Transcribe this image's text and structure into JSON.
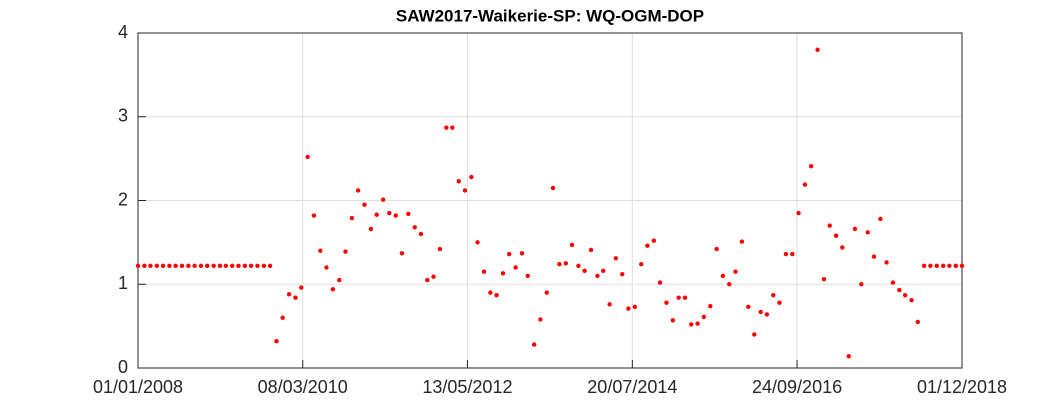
{
  "chart_data": {
    "type": "scatter",
    "title": "SAW2017-Waikerie-SP: WQ-OGM-DOP",
    "x": [
      "01/01/2008",
      "01/02/2008",
      "01/03/2008",
      "01/04/2008",
      "01/05/2008",
      "01/06/2008",
      "01/07/2008",
      "01/08/2008",
      "01/09/2008",
      "01/10/2008",
      "01/11/2008",
      "01/12/2008",
      "01/01/2009",
      "01/02/2009",
      "01/03/2009",
      "01/04/2009",
      "01/05/2009",
      "01/06/2009",
      "01/07/2009",
      "01/08/2009",
      "01/09/2009",
      "01/10/2009",
      "01/11/2009",
      "01/12/2009",
      "01/01/2010",
      "01/02/2010",
      "01/03/2010",
      "01/04/2010",
      "01/05/2010",
      "01/06/2010",
      "01/07/2010",
      "01/08/2010",
      "01/09/2010",
      "01/10/2010",
      "01/11/2010",
      "01/12/2010",
      "01/01/2011",
      "01/02/2011",
      "01/03/2011",
      "01/04/2011",
      "01/05/2011",
      "01/06/2011",
      "01/07/2011",
      "01/08/2011",
      "01/09/2011",
      "01/10/2011",
      "01/11/2011",
      "01/12/2011",
      "01/01/2012",
      "01/02/2012",
      "01/03/2012",
      "01/04/2012",
      "01/05/2012",
      "01/06/2012",
      "01/07/2012",
      "01/08/2012",
      "01/09/2012",
      "01/10/2012",
      "01/11/2012",
      "01/12/2012",
      "01/01/2013",
      "01/02/2013",
      "01/03/2013",
      "01/04/2013",
      "01/05/2013",
      "01/06/2013",
      "01/07/2013",
      "01/08/2013",
      "01/09/2013",
      "01/10/2013",
      "01/11/2013",
      "01/12/2013",
      "01/01/2014",
      "01/02/2014",
      "01/03/2014",
      "01/04/2014",
      "01/05/2014",
      "01/06/2014",
      "01/07/2014",
      "01/08/2014",
      "01/09/2014",
      "01/10/2014",
      "01/11/2014",
      "01/12/2014",
      "01/01/2015",
      "01/02/2015",
      "01/03/2015",
      "01/04/2015",
      "01/05/2015",
      "01/06/2015",
      "01/07/2015",
      "01/08/2015",
      "01/09/2015",
      "01/10/2015",
      "01/11/2015",
      "01/12/2015",
      "01/01/2016",
      "01/02/2016",
      "01/03/2016",
      "01/04/2016",
      "01/05/2016",
      "01/06/2016",
      "01/07/2016",
      "01/08/2016",
      "01/09/2016",
      "01/10/2016",
      "01/11/2016",
      "01/12/2016",
      "01/01/2017",
      "01/02/2017",
      "01/03/2017",
      "01/04/2017",
      "01/05/2017",
      "01/06/2017",
      "01/07/2017",
      "01/08/2017",
      "01/09/2017",
      "01/10/2017",
      "01/11/2017",
      "01/12/2017",
      "01/01/2018",
      "01/02/2018",
      "01/03/2018",
      "01/04/2018",
      "01/05/2018",
      "01/06/2018",
      "01/07/2018",
      "01/08/2018",
      "01/09/2018",
      "01/10/2018",
      "01/11/2018",
      "01/12/2018"
    ],
    "values": [
      1.22,
      1.22,
      1.22,
      1.22,
      1.22,
      1.22,
      1.22,
      1.22,
      1.22,
      1.22,
      1.22,
      1.22,
      1.22,
      1.22,
      1.22,
      1.22,
      1.22,
      1.22,
      1.22,
      1.22,
      1.22,
      1.22,
      0.32,
      0.6,
      0.88,
      0.84,
      0.96,
      2.52,
      1.82,
      1.4,
      1.2,
      0.94,
      1.05,
      1.39,
      1.79,
      2.12,
      1.95,
      1.66,
      1.83,
      2.01,
      1.85,
      1.82,
      1.37,
      1.84,
      1.68,
      1.6,
      1.05,
      1.09,
      1.42,
      2.87,
      2.87,
      2.23,
      2.12,
      2.28,
      1.5,
      1.15,
      0.9,
      0.87,
      1.13,
      1.36,
      1.2,
      1.37,
      1.1,
      0.28,
      0.58,
      0.9,
      2.15,
      1.24,
      1.25,
      1.47,
      1.22,
      1.16,
      1.41,
      1.1,
      1.16,
      0.76,
      1.31,
      1.12,
      0.71,
      0.73,
      1.24,
      1.46,
      1.52,
      1.02,
      0.78,
      0.57,
      0.84,
      0.84,
      0.52,
      0.53,
      0.61,
      0.74,
      1.42,
      1.1,
      1.0,
      1.15,
      1.51,
      0.73,
      0.4,
      0.67,
      0.64,
      0.87,
      0.78,
      1.36,
      1.36,
      1.85,
      2.19,
      2.41,
      3.8,
      1.06,
      1.7,
      1.58,
      1.44,
      0.14,
      1.66,
      1.0,
      1.62,
      1.33,
      1.78,
      1.26,
      1.02,
      0.93,
      0.87,
      0.81,
      0.55,
      1.22,
      1.22,
      1.22,
      1.22,
      1.22,
      1.22,
      1.22
    ],
    "color": "#ff0000",
    "xlim": [
      "01/01/2008",
      "01/12/2018"
    ],
    "xticks": [
      "01/01/2008",
      "08/03/2010",
      "13/05/2012",
      "20/07/2014",
      "24/09/2016",
      "01/12/2018"
    ],
    "ylim": [
      0,
      4
    ],
    "yticks": [
      0,
      1,
      2,
      3,
      4
    ],
    "grid": true
  }
}
